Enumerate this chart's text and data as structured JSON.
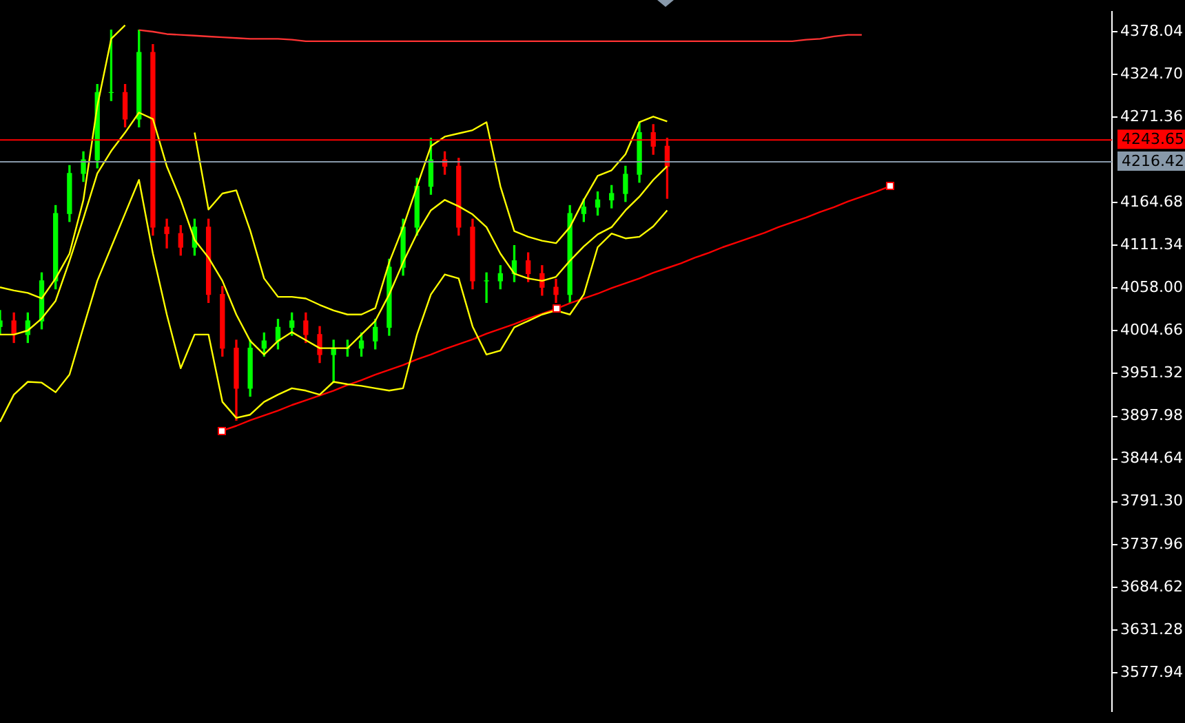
{
  "chart_data": {
    "type": "candlestick",
    "categories": [
      null,
      null,
      null,
      null,
      null,
      null,
      null,
      null,
      null,
      null,
      null,
      null,
      null,
      null,
      null,
      null,
      null,
      null,
      null,
      null,
      null,
      null,
      null,
      null,
      null,
      null,
      null,
      null,
      null,
      null,
      null,
      null,
      null,
      null,
      null,
      null,
      null,
      null,
      null,
      null,
      null,
      null,
      null,
      null,
      null,
      null,
      null,
      null,
      null,
      null,
      null,
      null,
      null,
      null,
      null,
      null,
      null,
      null,
      null,
      null,
      null,
      null,
      null,
      null,
      null,
      null,
      null,
      null,
      null,
      null,
      null,
      null,
      null,
      null,
      null,
      null,
      null,
      null,
      null,
      null,
      null
    ],
    "ylim": [
      3530,
      4402.7
    ],
    "yticks": [
      {
        "value": 4378.04,
        "label": "4378.04"
      },
      {
        "value": 4324.7,
        "label": "4324.70"
      },
      {
        "value": 4271.36,
        "label": "4271.36"
      },
      {
        "value": 4164.68,
        "label": "4164.68"
      },
      {
        "value": 4111.34,
        "label": "4111.34"
      },
      {
        "value": 4058,
        "label": "4058.00"
      },
      {
        "value": 4004.66,
        "label": "4004.66"
      },
      {
        "value": 3951.32,
        "label": "3951.32"
      },
      {
        "value": 3897.98,
        "label": "3897.98"
      },
      {
        "value": 3844.64,
        "label": "3844.64"
      },
      {
        "value": 3791.3,
        "label": "3791.30"
      },
      {
        "value": 3737.96,
        "label": "3737.96"
      },
      {
        "value": 3684.62,
        "label": "3684.62"
      },
      {
        "value": 3631.28,
        "label": "3631.28"
      },
      {
        "value": 3577.94,
        "label": "3577.94"
      }
    ],
    "tick_labels": "y",
    "grid": false,
    "legend": false,
    "ref_lines": [
      {
        "axis": "y",
        "value": 4243.65,
        "label": "4243.65",
        "color": "#ff0000"
      },
      {
        "axis": "y",
        "value": 4216.42,
        "label": "4216.42",
        "color": "#8899aa"
      }
    ],
    "series": [
      {
        "colors": [
          "#00ff00",
          "#ff0000",
          "#00ff00",
          "#00ff00",
          "#00ff00",
          "#00ff00",
          "#00ff00",
          "#00ff00",
          "#00ff00",
          "#ff0000",
          "#00ff00",
          "#ff0000",
          "#ff0000",
          "#ff0000",
          "#00ff00",
          "#ff0000",
          "#ff0000",
          "#ff0000",
          "#00ff00",
          "#00ff00",
          "#00ff00",
          "#00ff00",
          "#ff0000",
          "#ff0000",
          "#00ff00",
          "#00ff00",
          "#00ff00",
          "#00ff00",
          "#00ff00",
          "#00ff00",
          "#00ff00",
          "#00ff00",
          "#ff0000",
          "#ff0000",
          "#ff0000",
          "#00ff00",
          "#00ff00",
          "#00ff00",
          "#ff0000",
          "#ff0000",
          "#ff0000",
          "#00ff00",
          "#00ff00",
          "#00ff00",
          "#00ff00",
          "#00ff00",
          "#00ff00",
          "#ff0000",
          "#ff0000",
          null,
          null,
          null,
          null,
          null,
          null,
          null,
          null,
          null,
          null,
          null,
          null,
          null,
          null,
          null,
          null,
          null,
          null,
          null,
          null,
          null,
          null,
          null,
          null,
          null,
          null,
          null,
          null,
          null,
          null,
          null,
          null
        ],
        "ohlc": [
          [
            4010,
            4030,
            4000,
            4017
          ],
          [
            4017,
            4027,
            3990,
            4000
          ],
          [
            4000,
            4027,
            3990,
            4017
          ],
          [
            4017,
            4077,
            4007,
            4067
          ],
          [
            4067,
            4161,
            4057,
            4151
          ],
          [
            4151,
            4211,
            4141,
            4201
          ],
          [
            4201,
            4228,
            4191,
            4218
          ],
          [
            4218,
            4312,
            4208,
            4302
          ],
          [
            4302,
            4380,
            4292,
            4302
          ],
          [
            4302,
            4312,
            4259,
            4269
          ],
          [
            4269,
            4380,
            4259,
            4352
          ],
          [
            4352,
            4362,
            4124,
            4134
          ],
          [
            4134,
            4144,
            4108,
            4126
          ],
          [
            4126,
            4136,
            4099,
            4109
          ],
          [
            4109,
            4144,
            4099,
            4134
          ],
          [
            4134,
            4144,
            4040,
            4050
          ],
          [
            4050,
            4060,
            3973,
            3983
          ],
          [
            3983,
            3993,
            3893,
            3933
          ],
          [
            3933,
            3993,
            3923,
            3983
          ],
          [
            3983,
            4002,
            3973,
            3992
          ],
          [
            3992,
            4019,
            3982,
            4009
          ],
          [
            4009,
            4027,
            3999,
            4017
          ],
          [
            4017,
            4027,
            3990,
            4000
          ],
          [
            4000,
            4010,
            3965,
            3975
          ],
          [
            3975,
            3993,
            3940,
            3983
          ],
          [
            3983,
            3993,
            3973,
            3983
          ],
          [
            3983,
            4002,
            3973,
            3992
          ],
          [
            3992,
            4019,
            3982,
            4009
          ],
          [
            4009,
            4094,
            3999,
            4084
          ],
          [
            4084,
            4144,
            4074,
            4134
          ],
          [
            4134,
            4195,
            4124,
            4185
          ],
          [
            4185,
            4245,
            4175,
            4218
          ],
          [
            4218,
            4228,
            4200,
            4210
          ],
          [
            4210,
            4220,
            4124,
            4134
          ],
          [
            4134,
            4144,
            4057,
            4067
          ],
          [
            4067,
            4077,
            4040,
            4067
          ],
          [
            4067,
            4086,
            4057,
            4076
          ],
          [
            4076,
            4111,
            4066,
            4092
          ],
          [
            4092,
            4102,
            4066,
            4076
          ],
          [
            4076,
            4086,
            4049,
            4059
          ],
          [
            4059,
            4069,
            4040,
            4050
          ],
          [
            4050,
            4161,
            4040,
            4151
          ],
          [
            4151,
            4169,
            4141,
            4159
          ],
          [
            4159,
            4178,
            4149,
            4168
          ],
          [
            4168,
            4186,
            4158,
            4176
          ],
          [
            4176,
            4210,
            4166,
            4200
          ],
          [
            4200,
            4265,
            4190,
            4252
          ],
          [
            4252,
            4262,
            4225,
            4235
          ],
          [
            4235,
            4245,
            4170,
            4210
          ],
          null,
          null,
          null,
          null,
          null,
          null,
          null,
          null,
          null,
          null,
          null,
          null,
          null,
          null,
          null,
          null,
          null,
          null,
          null,
          null,
          null,
          null,
          null,
          null,
          null,
          null,
          null,
          null,
          null,
          null,
          null,
          null
        ]
      },
      {
        "type": "line",
        "color": "#ffff00",
        "values": [
          4059,
          4055,
          4052,
          4045,
          4070,
          4101,
          4168,
          4285,
          4369,
          4386,
          null,
          null,
          null,
          null,
          4252,
          4156,
          4176,
          4180,
          4130,
          4070,
          4047,
          4047,
          4045,
          4037,
          4030,
          4025,
          4025,
          4033,
          4090,
          4134,
          4185,
          4235,
          4247,
          4251,
          4255,
          4265,
          4185,
          4129,
          4122,
          4117,
          4114,
          4134,
          4168,
          4198,
          4205,
          4225,
          4265,
          4272,
          4266,
          null,
          null,
          null,
          null,
          null,
          null,
          null,
          null,
          null,
          null,
          null,
          null,
          null,
          null,
          null,
          null,
          null,
          null,
          null,
          null,
          null,
          null,
          null,
          null,
          null,
          null,
          null,
          null,
          null,
          null,
          null,
          null
        ]
      },
      {
        "type": "line",
        "color": "#ffff00",
        "values": [
          4000,
          4000,
          4005,
          4020,
          4042,
          4092,
          4145,
          4201,
          4229,
          4252,
          4277,
          4269,
          4210,
          4168,
          4118,
          4096,
          4067,
          4025,
          3992,
          3975,
          3992,
          4003,
          3993,
          3983,
          3983,
          3983,
          4000,
          4017,
          4050,
          4090,
          4126,
          4155,
          4168,
          4160,
          4150,
          4134,
          4101,
          4076,
          4070,
          4067,
          4072,
          4092,
          4110,
          4125,
          4134,
          4155,
          4172,
          4193,
          4210,
          null,
          null,
          null,
          null,
          null,
          null,
          null,
          null,
          null,
          null,
          null,
          null,
          null,
          null,
          null,
          null,
          null,
          null,
          null,
          null,
          null,
          null,
          null,
          null,
          null,
          null,
          null,
          null,
          null,
          null,
          null,
          null
        ]
      },
      {
        "type": "line",
        "color": "#ffff00",
        "values": [
          3891,
          3925,
          3941,
          3940,
          3928,
          3950,
          4009,
          4067,
          4109,
          4151,
          4193,
          4101,
          4025,
          3958,
          4000,
          4000,
          3916,
          3896,
          3900,
          3916,
          3925,
          3933,
          3930,
          3925,
          3941,
          3938,
          3936,
          3933,
          3930,
          3933,
          4000,
          4050,
          4075,
          4070,
          4010,
          3975,
          3980,
          4009,
          4017,
          4025,
          4030,
          4025,
          4050,
          4109,
          4126,
          4120,
          4122,
          4135,
          4155,
          null,
          null,
          null,
          null,
          null,
          null,
          null,
          null,
          null,
          null,
          null,
          null,
          null,
          null,
          null,
          null,
          null,
          null,
          null,
          null,
          null,
          null,
          null,
          null,
          null,
          null,
          null,
          null,
          null,
          null,
          null,
          null
        ]
      },
      {
        "type": "line",
        "color": "#ff3333",
        "values": [
          null,
          null,
          null,
          null,
          null,
          null,
          null,
          null,
          null,
          null,
          4380,
          4378,
          4375,
          4374,
          4373,
          4372,
          4371,
          4370,
          4369,
          4369,
          4369,
          4368,
          4366,
          4366,
          4366,
          4366,
          4366,
          4366,
          4366,
          4366,
          4366,
          4366,
          4366,
          4366,
          4366,
          4366,
          4366,
          4366,
          4366,
          4366,
          4366,
          4366,
          4366,
          4366,
          4366,
          4366,
          4366,
          4366,
          4366,
          4366,
          4366,
          4366,
          4366,
          4366,
          4366,
          4366,
          4366,
          4366,
          4368,
          4369,
          4372,
          4374,
          4374,
          null,
          null,
          null,
          null,
          null,
          null,
          null,
          null,
          null,
          null,
          null,
          null,
          null,
          null,
          null,
          null,
          null,
          null
        ]
      },
      {
        "type": "line",
        "color": "#ff0000",
        "values": [
          null,
          null,
          null,
          null,
          null,
          null,
          null,
          null,
          null,
          null,
          null,
          null,
          null,
          null,
          null,
          null,
          3880,
          3886,
          3893,
          3899,
          3905,
          3912,
          3918,
          3924,
          3930,
          3937,
          3943,
          3950,
          3956,
          3962,
          3969,
          3975,
          3982,
          3988,
          3994,
          4001,
          4007,
          4013,
          4020,
          4026,
          4032,
          4039,
          4045,
          4051,
          4058,
          4064,
          4070,
          4077,
          4083,
          4089,
          4096,
          4102,
          4109,
          4115,
          4121,
          4127,
          4134,
          4140,
          4146,
          4153,
          4159,
          4166,
          4172,
          4178,
          4185,
          null,
          null,
          null,
          null,
          null,
          null,
          null,
          null,
          null,
          null,
          null,
          null,
          null,
          null,
          null,
          null
        ]
      }
    ]
  }
}
